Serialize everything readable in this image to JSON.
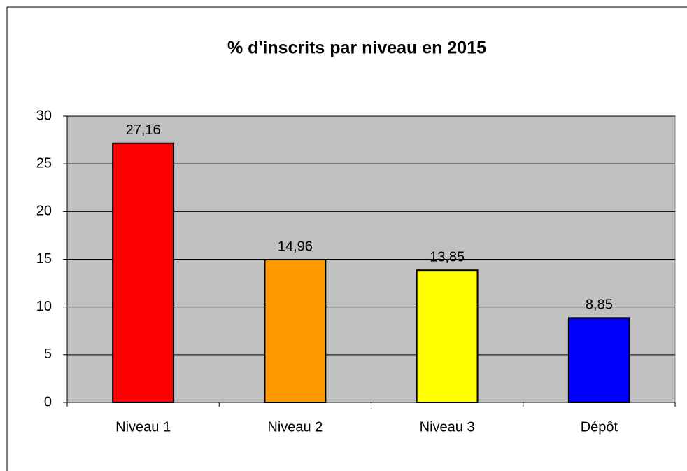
{
  "chart_data": {
    "type": "bar",
    "title": "% d'inscrits par niveau en 2015",
    "categories": [
      "Niveau 1",
      "Niveau 2",
      "Niveau 3",
      "Dépôt"
    ],
    "values": [
      27.16,
      14.96,
      13.85,
      8.85
    ],
    "value_labels": [
      "27,16",
      "14,96",
      "13,85",
      "8,85"
    ],
    "colors": [
      "#ff0000",
      "#ff9900",
      "#ffff00",
      "#0000ff"
    ],
    "ylim": [
      0,
      30
    ],
    "yticks": [
      0,
      5,
      10,
      15,
      20,
      25,
      30
    ],
    "grid": true
  }
}
